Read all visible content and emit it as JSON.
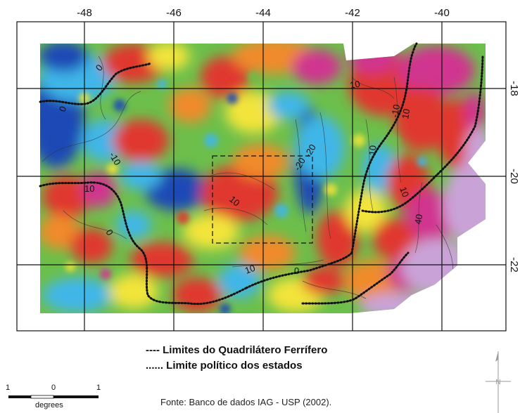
{
  "map": {
    "longitude_ticks": [
      "-48",
      "-46",
      "-44",
      "-42",
      "-40"
    ],
    "latitude_ticks": [
      "-18",
      "-20",
      "-22"
    ],
    "contour_labels": [
      "0",
      "0",
      "10",
      "10",
      "-10",
      "-10",
      "-20",
      "-20",
      "10",
      "10",
      "0",
      "10",
      "10",
      "40",
      "-10",
      "0"
    ],
    "colors": {
      "deep_blue": "#1f49b5",
      "cyan": "#3fb6e8",
      "green": "#6cbf4b",
      "yellow": "#f2e43a",
      "orange": "#f08a2a",
      "red": "#e0372e",
      "magenta": "#d0368f",
      "lilac": "#c9a3d8"
    }
  },
  "legend": {
    "quadrilatero": "---- Limites do Quadrilátero Ferrífero",
    "state_limits": "...... Limite político dos estados"
  },
  "scale_bar": {
    "left": "1",
    "middle": "0",
    "right": "1",
    "unit": "degrees"
  },
  "north_arrow": {
    "label": "N"
  },
  "source": "Fonte: Banco de dados IAG - USP (2002)."
}
